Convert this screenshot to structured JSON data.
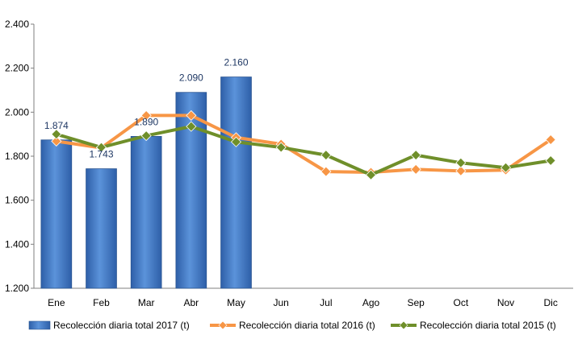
{
  "chart_data": {
    "type": "bar",
    "categories": [
      "Ene",
      "Feb",
      "Mar",
      "Abr",
      "May",
      "Jun",
      "Jul",
      "Ago",
      "Sep",
      "Oct",
      "Nov",
      "Dic"
    ],
    "ylim": [
      1200,
      2400
    ],
    "yticks": [
      "1.200",
      "1.400",
      "1.600",
      "1.800",
      "2.000",
      "2.200",
      "2.400"
    ],
    "ytick_values": [
      1200,
      1400,
      1600,
      1800,
      2000,
      2200,
      2400
    ],
    "grid": false,
    "legend_position": "bottom",
    "series": [
      {
        "name": "Recolección diaria total 2017 (t)",
        "type": "bar",
        "color": "#4a7fc9",
        "values": [
          1874,
          1743,
          1890,
          2090,
          2160,
          null,
          null,
          null,
          null,
          null,
          null,
          null
        ],
        "labels": [
          "1.874",
          "1.743",
          "1.890",
          "2.090",
          "2.160"
        ]
      },
      {
        "name": "Recolección diaria total 2016 (t)",
        "type": "line",
        "color": "#f79646",
        "values": [
          1868,
          1838,
          1985,
          1985,
          1885,
          1855,
          1730,
          1727,
          1740,
          1733,
          1737,
          1875
        ]
      },
      {
        "name": "Recolección diaria total 2015 (t)",
        "type": "line",
        "color": "#6f8f2a",
        "values": [
          1900,
          1840,
          1893,
          1935,
          1865,
          1840,
          1805,
          1715,
          1805,
          1770,
          1748,
          1780
        ]
      }
    ]
  }
}
